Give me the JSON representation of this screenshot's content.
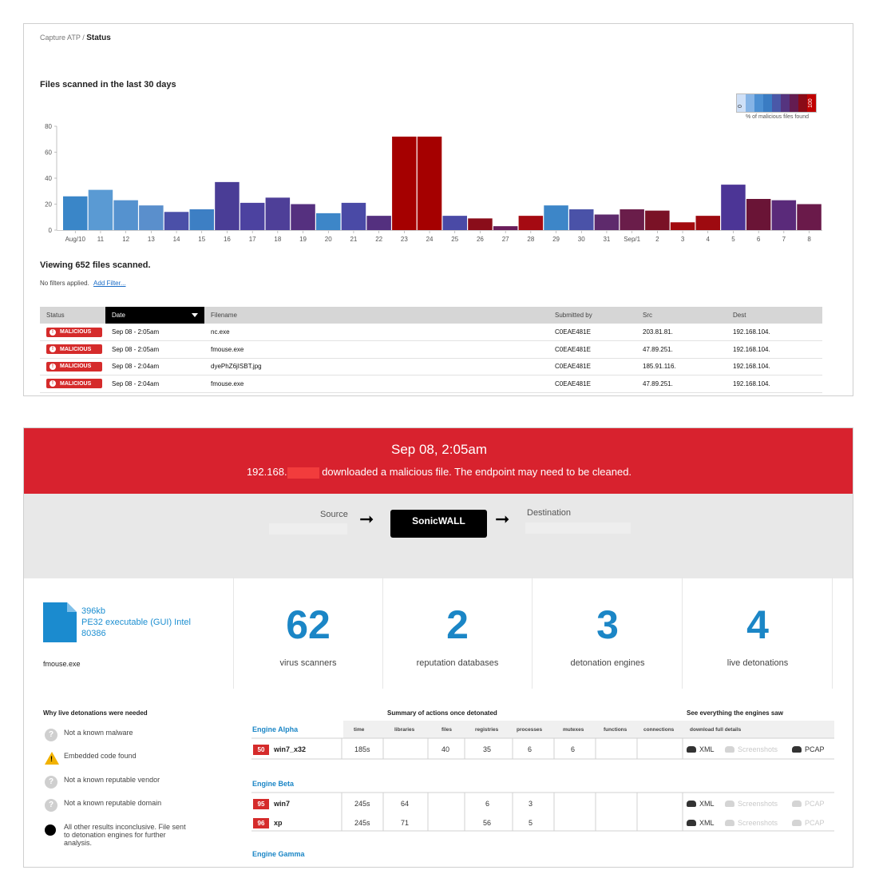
{
  "breadcrumb": {
    "parent": "Capture ATP /",
    "current": "Status"
  },
  "chart_title": "Files scanned in the last 30 days",
  "legend": {
    "min": "0",
    "max": "100",
    "label": "% of malicious files found",
    "colors": [
      "#cfe0f7",
      "#86b4e6",
      "#4d90d3",
      "#3a7cc3",
      "#4a58a8",
      "#55347f",
      "#641c51",
      "#8a0b17",
      "#c00000"
    ]
  },
  "chart_data": {
    "type": "bar",
    "title": "Files scanned in the last 30 days",
    "ylim": [
      0,
      80
    ],
    "yticks": [
      0,
      20,
      40,
      60,
      80
    ],
    "categories": [
      "Aug/10",
      "11",
      "12",
      "13",
      "14",
      "15",
      "16",
      "17",
      "18",
      "19",
      "20",
      "21",
      "22",
      "23",
      "24",
      "25",
      "26",
      "27",
      "28",
      "29",
      "30",
      "31",
      "Sep/1",
      "2",
      "3",
      "4",
      "5",
      "6",
      "7",
      "8"
    ],
    "values": [
      26,
      31,
      23,
      19,
      14,
      16,
      37,
      21,
      25,
      20,
      13,
      21,
      11,
      72,
      72,
      11,
      9,
      3,
      11,
      19,
      16,
      12,
      16,
      15,
      6,
      11,
      35,
      24,
      23,
      20
    ],
    "colors": [
      "#3a86c8",
      "#5a9ad3",
      "#5592cf",
      "#5a8fcc",
      "#4b50a8",
      "#3d7fc4",
      "#4a3d96",
      "#4c42a0",
      "#4e3f98",
      "#55307f",
      "#3d86c8",
      "#4a4aa6",
      "#54307f",
      "#a50000",
      "#a50000",
      "#4a4aa6",
      "#8a0d1a",
      "#6a1d5a",
      "#a50a12",
      "#3d86c8",
      "#4a52a8",
      "#5e2a6c",
      "#6a1d4a",
      "#7a1226",
      "#a30a0e",
      "#9e0a10",
      "#4c3596",
      "#6a1436",
      "#5a2a7a",
      "#6a1a4a"
    ]
  },
  "viewing": "Viewing 652 files scanned.",
  "filters": {
    "text": "No filters applied.",
    "add": "Add Filter..."
  },
  "table": {
    "headers": [
      "Status",
      "Date",
      "Filename",
      "Submitted by",
      "Src",
      "Dest"
    ],
    "rows": [
      {
        "status": "MALICIOUS",
        "date": "Sep 08 - 2:05am",
        "filename": "nc.exe",
        "submitted": "C0EAE481E",
        "src": "203.81.81.",
        "dest": "192.168.104."
      },
      {
        "status": "MALICIOUS",
        "date": "Sep 08 - 2:05am",
        "filename": "fmouse.exe",
        "submitted": "C0EAE481E",
        "src": "47.89.251.",
        "dest": "192.168.104."
      },
      {
        "status": "MALICIOUS",
        "date": "Sep 08 - 2:04am",
        "filename": "dyePhZ6jISBT.jpg",
        "submitted": "C0EAE481E",
        "src": "185.91.116.",
        "dest": "192.168.104."
      },
      {
        "status": "MALICIOUS",
        "date": "Sep 08 - 2:04am",
        "filename": "fmouse.exe",
        "submitted": "C0EAE481E",
        "src": "47.89.251.",
        "dest": "192.168.104."
      }
    ]
  },
  "banner": {
    "date": "Sep 08, 2:05am",
    "ip_prefix": "192.168.",
    "message": "downloaded a malicious file. The endpoint may need to be cleaned."
  },
  "flow": {
    "source": "Source",
    "device": "SonicWALL",
    "destination": "Destination"
  },
  "file": {
    "size": "396kb",
    "type": "PE32 executable (GUI) Intel 80386",
    "name": "fmouse.exe"
  },
  "stats": [
    {
      "value": "62",
      "label": "virus scanners"
    },
    {
      "value": "2",
      "label": "reputation databases"
    },
    {
      "value": "3",
      "label": "detonation engines"
    },
    {
      "value": "4",
      "label": "live detonations"
    }
  ],
  "why": {
    "title": "Why live detonations were needed",
    "items": [
      "Not a known malware",
      "Embedded code found",
      "Not a known reputable vendor",
      "Not a known reputable domain",
      "All other results inconclusive. File sent to detonation engines for further analysis."
    ]
  },
  "summary_title": "Summary of actions once detonated",
  "see_title": "See everything the engines saw",
  "columns": [
    "time",
    "libraries",
    "files",
    "registries",
    "processes",
    "mutexes",
    "functions",
    "connections",
    "download full details"
  ],
  "engines": [
    {
      "name": "Engine Alpha",
      "rows": [
        {
          "score": "50",
          "os": "win7_x32",
          "time": "185s",
          "libraries": "",
          "files": "40",
          "registries": "35",
          "processes": "6",
          "mutexes": "6"
        }
      ]
    },
    {
      "name": "Engine Beta",
      "rows": [
        {
          "score": "95",
          "os": "win7",
          "time": "245s",
          "libraries": "64",
          "files": "",
          "registries": "6",
          "processes": "3",
          "mutexes": ""
        },
        {
          "score": "96",
          "os": "xp",
          "time": "245s",
          "libraries": "71",
          "files": "",
          "registries": "56",
          "processes": "5",
          "mutexes": ""
        }
      ]
    },
    {
      "name": "Engine Gamma",
      "rows": []
    }
  ],
  "downloads": {
    "xml": "XML",
    "screenshots": "Screenshots",
    "pcap": "PCAP"
  }
}
